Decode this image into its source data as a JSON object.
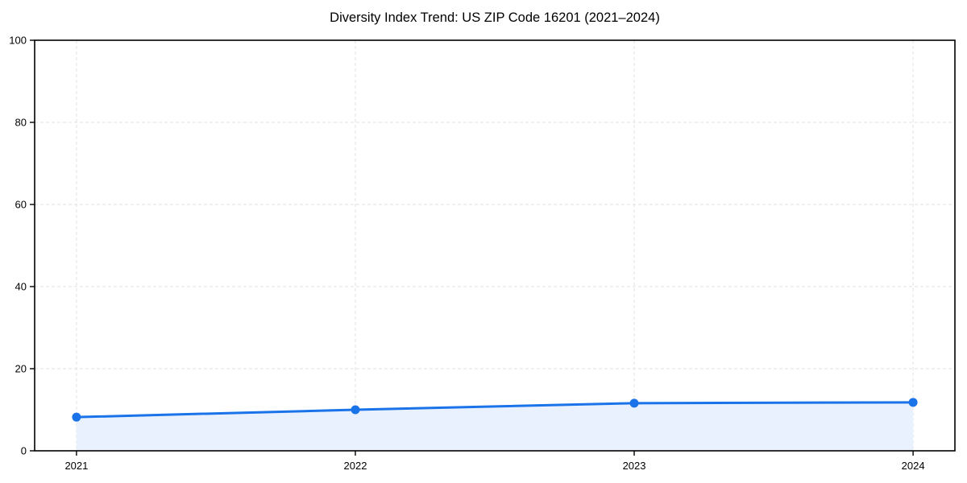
{
  "colors": {
    "line": "#1a73e8",
    "marker": "#1a73e8",
    "area_fill": "#e8f1fd",
    "grid": "#e2e2e2",
    "spine": "#000000",
    "text": "#000000",
    "background": "#ffffff"
  },
  "chart_data": {
    "type": "line",
    "title": "Diversity Index Trend: US ZIP Code 16201 (2021–2024)",
    "series": [
      {
        "name": "Diversity Index",
        "x": [
          2021,
          2022,
          2023,
          2024
        ],
        "values": [
          8.2,
          10.0,
          11.6,
          11.8
        ]
      }
    ],
    "xlabel": "",
    "ylabel": "",
    "xticks": [
      2021,
      2022,
      2023,
      2024
    ],
    "xtick_labels": [
      "2021",
      "2022",
      "2023",
      "2024"
    ],
    "yticks": [
      0,
      20,
      40,
      60,
      80,
      100
    ],
    "ytick_labels": [
      "0",
      "20",
      "40",
      "60",
      "80",
      "100"
    ],
    "xlim": [
      2020.85,
      2024.15
    ],
    "ylim": [
      0,
      100
    ],
    "grid": true,
    "grid_style": "dashed",
    "legend": false,
    "marker": "circle",
    "area_fill": true,
    "border": "full-box"
  }
}
